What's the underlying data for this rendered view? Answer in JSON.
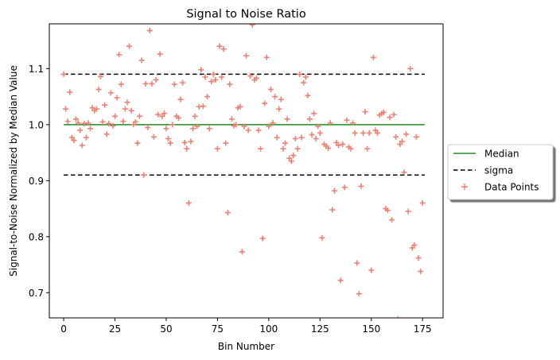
{
  "chart_data": {
    "type": "scatter",
    "title": "Signal to Noise Ratio",
    "xlabel": "Bin Number",
    "ylabel": "Signal-to-Noise Normalized by Median Value",
    "xlim": [
      -7,
      185
    ],
    "ylim": [
      0.655,
      1.18
    ],
    "xticks": [
      0,
      25,
      50,
      75,
      100,
      125,
      150,
      175
    ],
    "yticks": [
      0.7,
      0.8,
      0.9,
      1.0,
      1.1
    ],
    "legend_position": "right",
    "grid": false,
    "colors": {
      "median": "#228b22",
      "sigma": "#000000",
      "points": "#f08070"
    },
    "lines": [
      {
        "name": "Median",
        "style": "solid",
        "x": [
          0,
          176
        ],
        "y": [
          1.0,
          1.0
        ]
      },
      {
        "name": "sigma",
        "style": "dashed",
        "x": [
          0,
          176
        ],
        "y": [
          1.09,
          1.09
        ]
      },
      {
        "name": "sigma",
        "style": "dashed",
        "x": [
          0,
          176
        ],
        "y": [
          0.91,
          0.91
        ]
      }
    ],
    "legend": [
      "Median",
      "sigma",
      "Data Points"
    ],
    "series": [
      {
        "name": "Data Points",
        "marker": "+",
        "points": [
          [
            0,
            1.09
          ],
          [
            1,
            1.028
          ],
          [
            2,
            1.006
          ],
          [
            3,
            1.058
          ],
          [
            4,
            0.977
          ],
          [
            5,
            0.972
          ],
          [
            6,
            1.01
          ],
          [
            7,
            1.003
          ],
          [
            8,
            0.99
          ],
          [
            9,
            0.963
          ],
          [
            10,
            1.002
          ],
          [
            11,
            0.977
          ],
          [
            12,
            1.003
          ],
          [
            13,
            0.993
          ],
          [
            14,
            1.03
          ],
          [
            15,
            1.025
          ],
          [
            16,
            1.028
          ],
          [
            17,
            1.063
          ],
          [
            18,
            1.086
          ],
          [
            19,
            1.005
          ],
          [
            20,
            1.035
          ],
          [
            21,
            0.983
          ],
          [
            22,
            1.002
          ],
          [
            23,
            1.057
          ],
          [
            24,
            0.998
          ],
          [
            25,
            1.015
          ],
          [
            26,
            1.048
          ],
          [
            27,
            1.125
          ],
          [
            28,
            1.072
          ],
          [
            29,
            1.006
          ],
          [
            30,
            1.028
          ],
          [
            31,
            1.04
          ],
          [
            32,
            1.14
          ],
          [
            33,
            1.025
          ],
          [
            34,
            1.0
          ],
          [
            35,
            1.005
          ],
          [
            36,
            0.967
          ],
          [
            37,
            1.015
          ],
          [
            38,
            1.115
          ],
          [
            39,
            0.91
          ],
          [
            40,
            1.073
          ],
          [
            41,
            0.995
          ],
          [
            42,
            1.168
          ],
          [
            43,
            1.073
          ],
          [
            44,
            0.978
          ],
          [
            45,
            1.08
          ],
          [
            46,
            1.018
          ],
          [
            47,
            1.126
          ],
          [
            48,
            1.015
          ],
          [
            49,
            1.02
          ],
          [
            50,
            0.993
          ],
          [
            51,
            0.975
          ],
          [
            52,
            0.967
          ],
          [
            53,
            1.0
          ],
          [
            54,
            1.072
          ],
          [
            55,
            1.015
          ],
          [
            56,
            1.012
          ],
          [
            57,
            1.045
          ],
          [
            58,
            1.075
          ],
          [
            59,
            0.968
          ],
          [
            60,
            0.957
          ],
          [
            61,
            0.86
          ],
          [
            62,
            0.97
          ],
          [
            63,
            0.993
          ],
          [
            64,
            1.015
          ],
          [
            65,
            0.997
          ],
          [
            66,
            1.032
          ],
          [
            67,
            1.098
          ],
          [
            68,
            1.033
          ],
          [
            69,
            1.085
          ],
          [
            70,
            1.05
          ],
          [
            71,
            0.993
          ],
          [
            72,
            1.077
          ],
          [
            73,
            1.09
          ],
          [
            74,
            1.08
          ],
          [
            75,
            0.957
          ],
          [
            76,
            1.14
          ],
          [
            77,
            1.085
          ],
          [
            78,
            1.135
          ],
          [
            79,
            0.967
          ],
          [
            80,
            0.843
          ],
          [
            81,
            1.072
          ],
          [
            82,
            1.01
          ],
          [
            83,
            0.998
          ],
          [
            84,
            1.0
          ],
          [
            85,
            1.03
          ],
          [
            86,
            1.032
          ],
          [
            87,
            0.773
          ],
          [
            88,
            0.997
          ],
          [
            89,
            1.123
          ],
          [
            90,
            0.99
          ],
          [
            91,
            1.087
          ],
          [
            92,
            1.178
          ],
          [
            93,
            1.08
          ],
          [
            94,
            1.083
          ],
          [
            95,
            0.99
          ],
          [
            96,
            0.957
          ],
          [
            97,
            0.797
          ],
          [
            98,
            1.038
          ],
          [
            99,
            1.12
          ],
          [
            100,
            0.997
          ],
          [
            101,
            1.063
          ],
          [
            102,
            1.003
          ],
          [
            103,
            1.05
          ],
          [
            104,
            0.977
          ],
          [
            105,
            1.028
          ],
          [
            106,
            1.045
          ],
          [
            107,
            0.957
          ],
          [
            108,
            0.967
          ],
          [
            109,
            1.01
          ],
          [
            110,
            0.94
          ],
          [
            111,
            0.935
          ],
          [
            112,
            0.945
          ],
          [
            113,
            0.975
          ],
          [
            114,
            0.957
          ],
          [
            115,
            1.09
          ],
          [
            116,
            0.977
          ],
          [
            117,
            1.075
          ],
          [
            118,
            1.085
          ],
          [
            119,
            1.052
          ],
          [
            120,
            1.01
          ],
          [
            121,
            0.982
          ],
          [
            122,
            1.02
          ],
          [
            123,
            0.975
          ],
          [
            124,
            0.997
          ],
          [
            125,
            0.985
          ],
          [
            126,
            0.798
          ],
          [
            127,
            0.965
          ],
          [
            128,
            0.962
          ],
          [
            129,
            0.958
          ],
          [
            130,
            1.003
          ],
          [
            131,
            0.848
          ],
          [
            132,
            0.882
          ],
          [
            133,
            0.968
          ],
          [
            134,
            0.963
          ],
          [
            135,
            0.722
          ],
          [
            136,
            0.965
          ],
          [
            137,
            0.888
          ],
          [
            138,
            1.008
          ],
          [
            139,
            0.96
          ],
          [
            140,
            0.957
          ],
          [
            141,
            1.003
          ],
          [
            142,
            0.985
          ],
          [
            143,
            0.753
          ],
          [
            144,
            0.698
          ],
          [
            145,
            0.89
          ],
          [
            146,
            0.985
          ],
          [
            147,
            1.023
          ],
          [
            148,
            0.957
          ],
          [
            149,
            0.985
          ],
          [
            150,
            0.74
          ],
          [
            151,
            1.12
          ],
          [
            152,
            0.99
          ],
          [
            153,
            0.985
          ],
          [
            154,
            1.017
          ],
          [
            155,
            1.02
          ],
          [
            156,
            1.022
          ],
          [
            157,
            0.85
          ],
          [
            158,
            0.847
          ],
          [
            159,
            1.013
          ],
          [
            160,
            0.83
          ],
          [
            161,
            1.018
          ],
          [
            162,
            0.978
          ],
          [
            163,
            0.653
          ],
          [
            164,
            0.965
          ],
          [
            165,
            0.97
          ],
          [
            166,
            0.915
          ],
          [
            167,
            0.983
          ],
          [
            168,
            0.845
          ],
          [
            169,
            1.1
          ],
          [
            170,
            0.78
          ],
          [
            171,
            0.785
          ],
          [
            172,
            0.978
          ],
          [
            173,
            0.762
          ],
          [
            174,
            0.738
          ],
          [
            175,
            0.86
          ]
        ]
      }
    ]
  }
}
